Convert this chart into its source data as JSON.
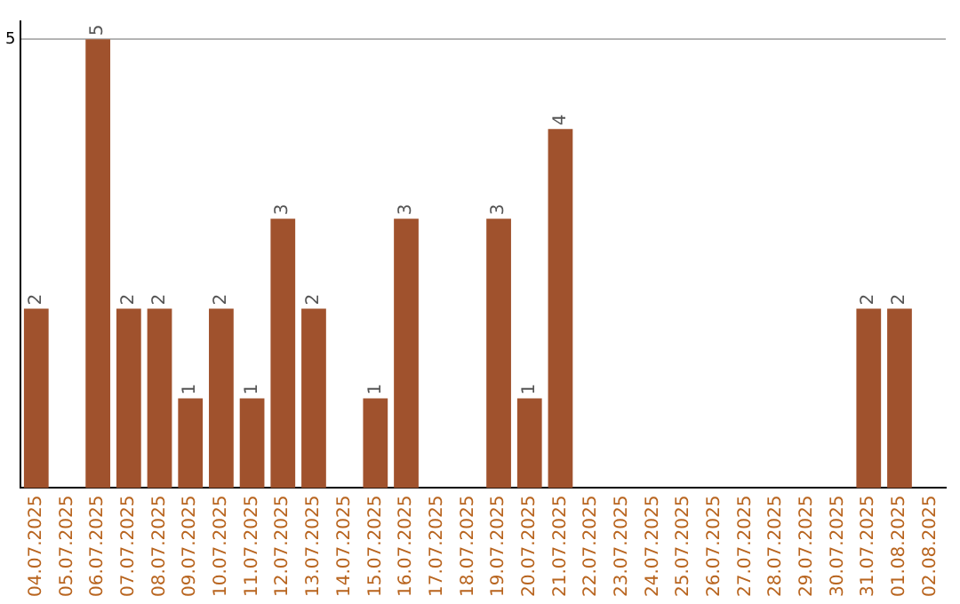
{
  "chart_data": {
    "type": "bar",
    "categories": [
      "04.07.2025",
      "05.07.2025",
      "06.07.2025",
      "07.07.2025",
      "08.07.2025",
      "09.07.2025",
      "10.07.2025",
      "11.07.2025",
      "12.07.2025",
      "13.07.2025",
      "14.07.2025",
      "15.07.2025",
      "16.07.2025",
      "17.07.2025",
      "18.07.2025",
      "19.07.2025",
      "20.07.2025",
      "21.07.2025",
      "22.07.2025",
      "23.07.2025",
      "24.07.2025",
      "25.07.2025",
      "26.07.2025",
      "27.07.2025",
      "28.07.2025",
      "29.07.2025",
      "30.07.2025",
      "31.07.2025",
      "01.08.2025",
      "02.08.2025"
    ],
    "values": [
      2,
      0,
      5,
      2,
      2,
      1,
      2,
      1,
      3,
      2,
      0,
      1,
      3,
      0,
      0,
      3,
      1,
      4,
      0,
      0,
      0,
      0,
      0,
      0,
      0,
      0,
      0,
      2,
      2,
      0
    ],
    "value_labels": [
      "2",
      null,
      "5",
      "2",
      "2",
      "1",
      "2",
      "1",
      "3",
      "2",
      null,
      "1",
      "3",
      null,
      null,
      "3",
      "1",
      "4",
      null,
      null,
      null,
      null,
      null,
      null,
      null,
      null,
      null,
      "2",
      "2",
      null
    ],
    "color": "#a0522d",
    "ylim": [
      0,
      5.2
    ],
    "yticks": [
      5
    ],
    "grid": "y",
    "legend": false
  }
}
